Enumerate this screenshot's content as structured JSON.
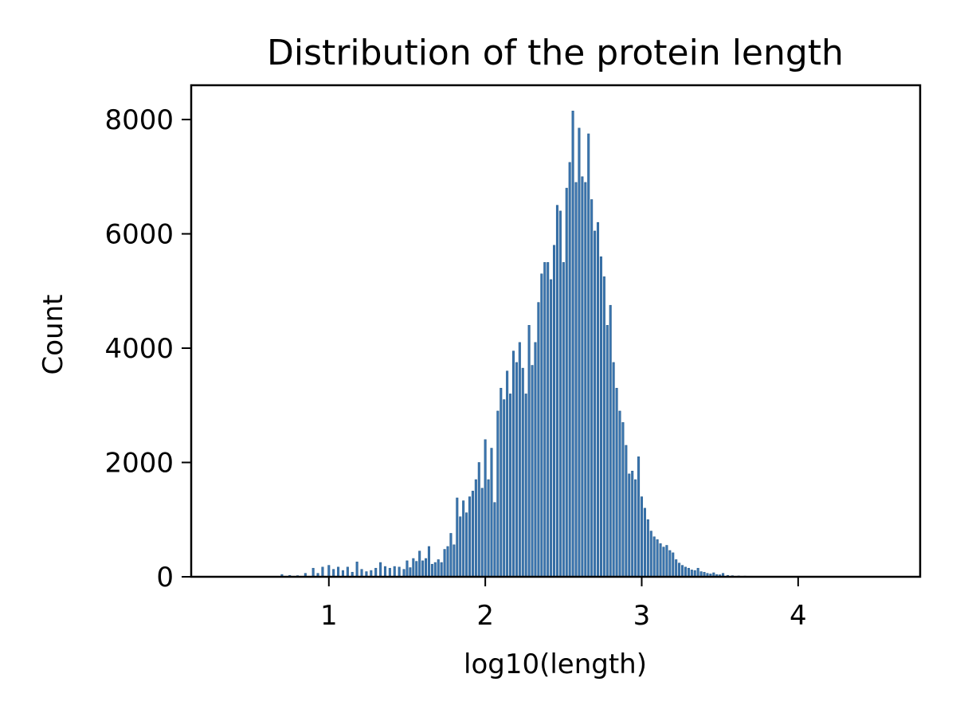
{
  "chart_data": {
    "type": "bar",
    "title": "Distribution of the protein length",
    "xlabel": "log10(length)",
    "ylabel": "Count",
    "xlim": [
      0.12,
      4.78
    ],
    "ylim": [
      0,
      8600
    ],
    "xticks": [
      1,
      2,
      3,
      4
    ],
    "yticks": [
      0,
      2000,
      4000,
      6000,
      8000
    ],
    "grid": false,
    "bin_width": 0.0125,
    "bar_color": "#3b75af",
    "bar_edge": "#2a5f8f",
    "bins": [
      [
        0.7,
        40
      ],
      [
        0.75,
        25
      ],
      [
        0.8,
        20
      ],
      [
        0.85,
        60
      ],
      [
        0.9,
        150
      ],
      [
        0.93,
        60
      ],
      [
        0.96,
        170
      ],
      [
        1.0,
        200
      ],
      [
        1.03,
        130
      ],
      [
        1.06,
        170
      ],
      [
        1.09,
        110
      ],
      [
        1.12,
        170
      ],
      [
        1.15,
        80
      ],
      [
        1.18,
        260
      ],
      [
        1.21,
        130
      ],
      [
        1.24,
        90
      ],
      [
        1.27,
        110
      ],
      [
        1.3,
        150
      ],
      [
        1.33,
        250
      ],
      [
        1.36,
        180
      ],
      [
        1.39,
        150
      ],
      [
        1.42,
        180
      ],
      [
        1.45,
        170
      ],
      [
        1.48,
        130
      ],
      [
        1.5,
        280
      ],
      [
        1.52,
        160
      ],
      [
        1.54,
        320
      ],
      [
        1.56,
        270
      ],
      [
        1.58,
        450
      ],
      [
        1.6,
        280
      ],
      [
        1.62,
        320
      ],
      [
        1.64,
        530
      ],
      [
        1.66,
        220
      ],
      [
        1.68,
        250
      ],
      [
        1.7,
        300
      ],
      [
        1.72,
        250
      ],
      [
        1.74,
        480
      ],
      [
        1.76,
        530
      ],
      [
        1.78,
        760
      ],
      [
        1.8,
        560
      ],
      [
        1.82,
        1380
      ],
      [
        1.84,
        1050
      ],
      [
        1.86,
        1330
      ],
      [
        1.88,
        1120
      ],
      [
        1.9,
        1400
      ],
      [
        1.92,
        1500
      ],
      [
        1.94,
        1700
      ],
      [
        1.96,
        2000
      ],
      [
        1.98,
        1550
      ],
      [
        2.0,
        2400
      ],
      [
        2.02,
        1700
      ],
      [
        2.04,
        2250
      ],
      [
        2.06,
        1300
      ],
      [
        2.08,
        2900
      ],
      [
        2.1,
        3300
      ],
      [
        2.12,
        3100
      ],
      [
        2.14,
        3600
      ],
      [
        2.16,
        3200
      ],
      [
        2.18,
        3950
      ],
      [
        2.2,
        3750
      ],
      [
        2.22,
        4100
      ],
      [
        2.24,
        3650
      ],
      [
        2.26,
        3200
      ],
      [
        2.28,
        4400
      ],
      [
        2.3,
        3700
      ],
      [
        2.32,
        4100
      ],
      [
        2.34,
        4800
      ],
      [
        2.36,
        5300
      ],
      [
        2.38,
        5500
      ],
      [
        2.4,
        5500
      ],
      [
        2.42,
        5200
      ],
      [
        2.44,
        5800
      ],
      [
        2.46,
        6500
      ],
      [
        2.48,
        6400
      ],
      [
        2.5,
        5500
      ],
      [
        2.52,
        6800
      ],
      [
        2.54,
        7250
      ],
      [
        2.56,
        8150
      ],
      [
        2.58,
        6900
      ],
      [
        2.6,
        7850
      ],
      [
        2.62,
        7000
      ],
      [
        2.64,
        6900
      ],
      [
        2.66,
        7750
      ],
      [
        2.68,
        6600
      ],
      [
        2.7,
        6050
      ],
      [
        2.72,
        6200
      ],
      [
        2.74,
        5600
      ],
      [
        2.76,
        5250
      ],
      [
        2.78,
        4400
      ],
      [
        2.8,
        4750
      ],
      [
        2.82,
        3750
      ],
      [
        2.84,
        3300
      ],
      [
        2.86,
        2900
      ],
      [
        2.88,
        2700
      ],
      [
        2.9,
        2300
      ],
      [
        2.92,
        1800
      ],
      [
        2.94,
        1850
      ],
      [
        2.96,
        1700
      ],
      [
        2.98,
        2100
      ],
      [
        3.0,
        1400
      ],
      [
        3.02,
        1200
      ],
      [
        3.04,
        1000
      ],
      [
        3.06,
        800
      ],
      [
        3.08,
        700
      ],
      [
        3.1,
        650
      ],
      [
        3.12,
        580
      ],
      [
        3.14,
        520
      ],
      [
        3.16,
        550
      ],
      [
        3.18,
        460
      ],
      [
        3.2,
        420
      ],
      [
        3.22,
        300
      ],
      [
        3.24,
        240
      ],
      [
        3.26,
        200
      ],
      [
        3.28,
        170
      ],
      [
        3.3,
        150
      ],
      [
        3.32,
        120
      ],
      [
        3.34,
        110
      ],
      [
        3.36,
        150
      ],
      [
        3.38,
        90
      ],
      [
        3.4,
        80
      ],
      [
        3.42,
        60
      ],
      [
        3.44,
        50
      ],
      [
        3.46,
        70
      ],
      [
        3.48,
        40
      ],
      [
        3.5,
        35
      ],
      [
        3.52,
        60
      ],
      [
        3.55,
        25
      ],
      [
        3.58,
        20
      ],
      [
        3.62,
        15
      ],
      [
        3.66,
        12
      ],
      [
        3.7,
        10
      ],
      [
        3.75,
        6
      ]
    ]
  }
}
